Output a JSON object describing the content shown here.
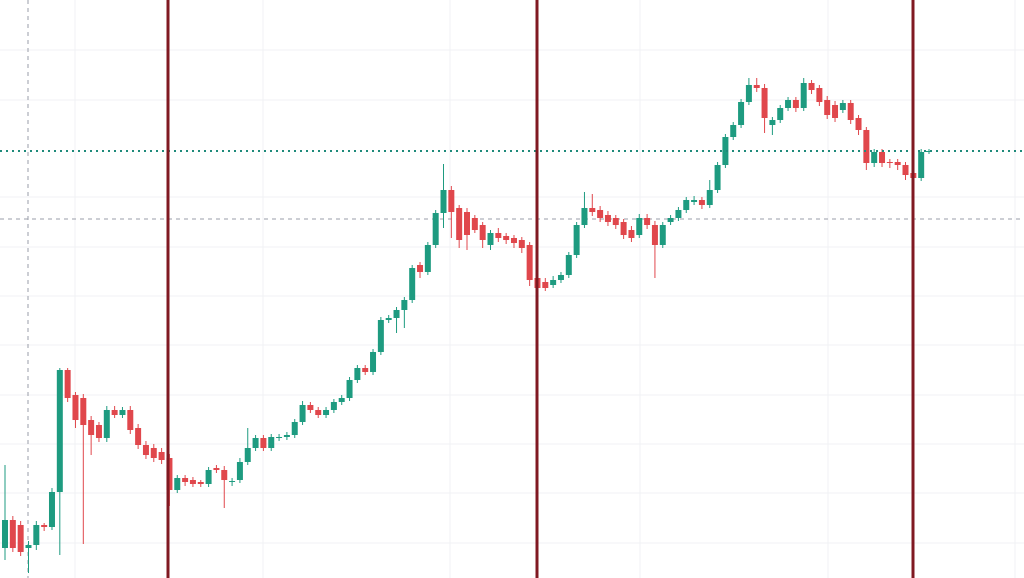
{
  "chart_data": {
    "type": "candlestick",
    "up_color": "#1e9b80",
    "down_color": "#e0474c",
    "ylim": [
      0,
      578
    ],
    "open": [
      30,
      58,
      53,
      30,
      33,
      53,
      51,
      86,
      208,
      183,
      180,
      158,
      153,
      140,
      168,
      163,
      168,
      150,
      133,
      130,
      126,
      120,
      88,
      100,
      98,
      96,
      94,
      110,
      108,
      96,
      98,
      116,
      130,
      140,
      130,
      140,
      141,
      143,
      156,
      173,
      168,
      163,
      168,
      176,
      180,
      198,
      210,
      206,
      226,
      258,
      260,
      268,
      278,
      313,
      306,
      333,
      365,
      388,
      370,
      366,
      360,
      353,
      333,
      345,
      342,
      340,
      338,
      333,
      300,
      296,
      293,
      298,
      303,
      323,
      353,
      370,
      368,
      363,
      360,
      356,
      348,
      343,
      360,
      353,
      333,
      356,
      360,
      368,
      376,
      378,
      373,
      388,
      413,
      441,
      453,
      476,
      493,
      490,
      453,
      458,
      470,
      478,
      470,
      495,
      490,
      478,
      473,
      468,
      475,
      460,
      448,
      415,
      426,
      416,
      416,
      413,
      405,
      400,
      426
    ],
    "high": [
      113,
      62,
      57,
      37,
      57,
      55,
      90,
      210,
      210,
      186,
      184,
      162,
      156,
      172,
      172,
      171,
      172,
      154,
      137,
      134,
      130,
      124,
      103,
      103,
      101,
      98,
      111,
      113,
      112,
      100,
      120,
      150,
      143,
      143,
      144,
      144,
      146,
      159,
      177,
      176,
      171,
      171,
      179,
      183,
      201,
      213,
      213,
      229,
      261,
      263,
      271,
      281,
      313,
      316,
      336,
      368,
      414,
      392,
      373,
      370,
      363,
      356,
      348,
      350,
      345,
      343,
      341,
      336,
      304,
      300,
      302,
      306,
      326,
      356,
      386,
      384,
      372,
      367,
      363,
      359,
      352,
      364,
      364,
      357,
      356,
      363,
      371,
      381,
      382,
      381,
      398,
      416,
      444,
      456,
      479,
      500,
      500,
      494,
      461,
      473,
      481,
      481,
      500,
      498,
      493,
      482,
      477,
      478,
      478,
      463,
      451,
      429,
      429,
      419,
      419,
      416,
      408,
      429,
      429
    ],
    "low": [
      18,
      26,
      22,
      5,
      28,
      47,
      48,
      23,
      176,
      150,
      34,
      123,
      136,
      136,
      160,
      160,
      144,
      129,
      119,
      116,
      114,
      72,
      85,
      92,
      91,
      91,
      91,
      105,
      70,
      92,
      95,
      113,
      127,
      127,
      127,
      137,
      138,
      140,
      153,
      165,
      160,
      160,
      165,
      173,
      177,
      195,
      203,
      203,
      223,
      255,
      245,
      250,
      275,
      300,
      303,
      330,
      350,
      340,
      330,
      328,
      345,
      330,
      328,
      336,
      334,
      330,
      325,
      292,
      286,
      287,
      290,
      295,
      300,
      320,
      350,
      362,
      356,
      352,
      349,
      339,
      336,
      340,
      349,
      300,
      330,
      353,
      357,
      365,
      373,
      369,
      370,
      385,
      410,
      438,
      450,
      473,
      486,
      445,
      443,
      455,
      467,
      466,
      467,
      484,
      472,
      459,
      456,
      465,
      454,
      443,
      408,
      411,
      411,
      410,
      408,
      398,
      396,
      397,
      424
    ],
    "close": [
      58,
      30,
      26,
      33,
      53,
      51,
      86,
      208,
      180,
      158,
      153,
      143,
      140,
      168,
      163,
      168,
      148,
      133,
      123,
      120,
      118,
      88,
      100,
      96,
      94,
      94,
      108,
      108,
      98,
      97,
      116,
      130,
      140,
      130,
      141,
      141,
      143,
      156,
      173,
      168,
      163,
      168,
      176,
      180,
      198,
      210,
      206,
      226,
      258,
      260,
      268,
      278,
      310,
      306,
      333,
      365,
      388,
      366,
      338,
      343,
      348,
      338,
      345,
      340,
      338,
      335,
      330,
      298,
      290,
      290,
      298,
      303,
      323,
      353,
      370,
      366,
      360,
      356,
      353,
      343,
      340,
      360,
      353,
      333,
      353,
      360,
      368,
      378,
      378,
      373,
      388,
      413,
      441,
      453,
      476,
      493,
      490,
      460,
      458,
      470,
      478,
      470,
      495,
      488,
      476,
      463,
      460,
      475,
      458,
      448,
      415,
      426,
      415,
      415,
      413,
      403,
      400,
      426,
      427
    ]
  }
}
